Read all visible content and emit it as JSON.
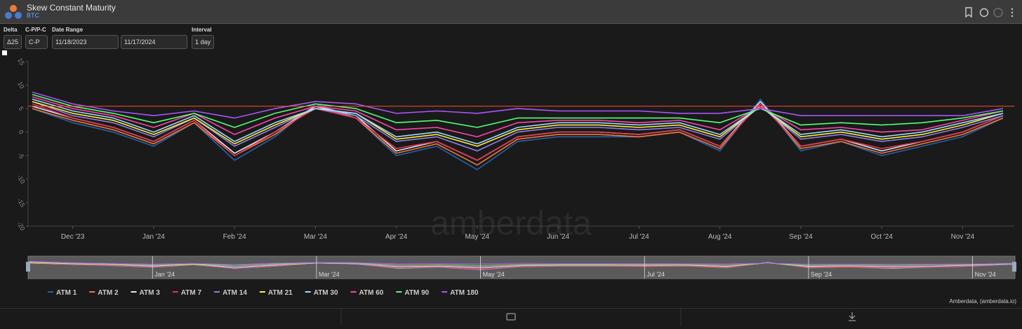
{
  "header": {
    "title": "Skew Constant Maturity",
    "subtitle": "BTC"
  },
  "controls": {
    "delta": {
      "label": "Delta",
      "value": "Δ25"
    },
    "cp": {
      "label": "C-P/P-C",
      "value": "C-P"
    },
    "date_range": {
      "label": "Date Range",
      "start": "11/18/2023",
      "end": "11/17/2024"
    },
    "interval": {
      "label": "Interval",
      "value": "1 day"
    }
  },
  "watermark": "amberdata",
  "footer": "Amberdata, (amberdata.io)",
  "chart_data": {
    "type": "line",
    "categories": [
      null,
      "Dec '23",
      null,
      "Jan '24",
      null,
      "Feb '24",
      null,
      "Mar '24",
      null,
      "Apr '24",
      null,
      "May '24",
      null,
      "Jun '24",
      null,
      "Jul '24",
      null,
      "Aug '24",
      null,
      "Sep '24",
      null,
      "Oct '24",
      null,
      "Nov '24",
      null
    ],
    "ylim": [
      -20,
      15
    ],
    "yticks": [
      15,
      10,
      5,
      0,
      -5,
      -10,
      -15,
      -20
    ],
    "hline": {
      "value": 5.5,
      "color": "#ff4d2e"
    },
    "series": [
      {
        "name": "ATM 1",
        "color": "#2163b0",
        "values": [
          5,
          2,
          0,
          -3,
          2,
          -6,
          -1,
          6,
          3,
          -5,
          -3,
          -8,
          -2,
          -1,
          -1,
          -1,
          0,
          -4,
          7,
          -4,
          -2,
          -5,
          -3,
          -1,
          3
        ]
      },
      {
        "name": "ATM 2",
        "color": "#f07a3a",
        "values": [
          5,
          2.5,
          0.5,
          -2.5,
          2,
          -5,
          -0.5,
          5.5,
          3,
          -4.5,
          -2.5,
          -7,
          -1.5,
          -0.5,
          -0.5,
          -1,
          0,
          -3.5,
          6.5,
          -3.5,
          -2,
          -4.5,
          -2.5,
          -0.5,
          3
        ]
      },
      {
        "name": "ATM 3",
        "color": "#d6ebff",
        "values": [
          5.5,
          3,
          1,
          -2,
          2.5,
          -4.5,
          0,
          5.5,
          3.5,
          -4,
          -2,
          -6,
          -1,
          0,
          0,
          -0.5,
          0.5,
          -3,
          6.5,
          -3,
          -1.5,
          -4,
          -2,
          0,
          3.5
        ]
      },
      {
        "name": "ATM 7",
        "color": "#e8344a",
        "values": [
          6,
          3,
          1,
          -2,
          2.5,
          -5,
          0,
          5,
          3,
          -3.5,
          -2,
          -6,
          -1,
          0,
          0,
          -0.5,
          0.5,
          -3,
          6,
          -3,
          -1.5,
          -3.5,
          -2,
          0,
          3.5
        ]
      },
      {
        "name": "ATM 14",
        "color": "#8f7fe8",
        "values": [
          6.5,
          3.5,
          2,
          -1,
          3,
          -3,
          1,
          5,
          3.5,
          -2,
          -1,
          -4,
          0,
          1,
          1,
          0.5,
          1,
          -1.5,
          5.5,
          -1.5,
          -0.5,
          -2,
          -1,
          1,
          3.5
        ]
      },
      {
        "name": "ATM 21",
        "color": "#ffee44",
        "values": [
          6.5,
          4,
          2.5,
          -0.5,
          3,
          -2.5,
          1.5,
          5,
          4,
          -1.5,
          -0.5,
          -3,
          0.5,
          1.5,
          1.5,
          1,
          1.5,
          -1,
          5.5,
          -1,
          0,
          -1.5,
          -0.5,
          1.5,
          4
        ]
      },
      {
        "name": "ATM 30",
        "color": "#9dd9ff",
        "values": [
          7,
          4.5,
          3,
          0,
          3.5,
          -2,
          2,
          5,
          4,
          -1,
          0,
          -2.5,
          1,
          2,
          2,
          1.5,
          2,
          -0.5,
          5.5,
          -0.5,
          0.5,
          -1,
          0,
          2,
          4
        ]
      },
      {
        "name": "ATM 60",
        "color": "#ff44aa",
        "values": [
          7.5,
          5,
          3.5,
          1,
          4,
          -0.5,
          3,
          5.5,
          4.5,
          0.5,
          1,
          -1,
          2,
          2.5,
          2.5,
          2,
          2.5,
          0.5,
          5.5,
          0.5,
          1,
          0,
          0.5,
          2.5,
          4.5
        ]
      },
      {
        "name": "ATM 90",
        "color": "#55ff77",
        "values": [
          8,
          5.5,
          4,
          2,
          4,
          1,
          4,
          6,
          5,
          2,
          2.5,
          1,
          3,
          3,
          3,
          3,
          3,
          2,
          5,
          1.5,
          2,
          1.5,
          2,
          3,
          4.5
        ]
      },
      {
        "name": "ATM 180",
        "color": "#a855f7",
        "values": [
          8.5,
          6,
          4.5,
          3.5,
          4.5,
          3,
          5,
          6.5,
          6,
          4,
          4.5,
          4,
          5,
          4.5,
          4.5,
          4.5,
          4,
          4,
          5,
          3.5,
          3.5,
          3.5,
          3.5,
          3.5,
          5
        ]
      }
    ]
  }
}
